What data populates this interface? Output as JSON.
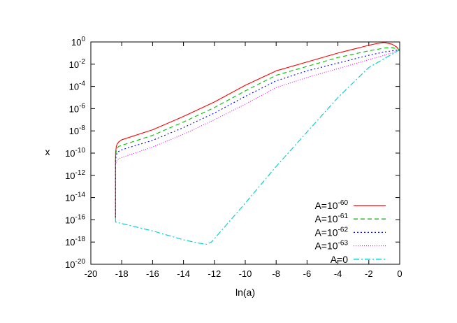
{
  "chart_data": {
    "type": "line",
    "xlabel": "ln(a)",
    "ylabel": "x",
    "xlim": [
      -20,
      0
    ],
    "ylim_log10": [
      -20,
      0
    ],
    "y_scale": "log",
    "legend_placement": "bottom-right",
    "xticks": [
      "-20",
      "-18",
      "-16",
      "-14",
      "-12",
      "-10",
      "-8",
      "-6",
      "-4",
      "-2",
      "0"
    ],
    "yticks": [
      {
        "base": "10",
        "exp": "0"
      },
      {
        "base": "10",
        "exp": "-2"
      },
      {
        "base": "10",
        "exp": "-4"
      },
      {
        "base": "10",
        "exp": "-6"
      },
      {
        "base": "10",
        "exp": "-8"
      },
      {
        "base": "10",
        "exp": "-10"
      },
      {
        "base": "10",
        "exp": "-12"
      },
      {
        "base": "10",
        "exp": "-14"
      },
      {
        "base": "10",
        "exp": "-16"
      },
      {
        "base": "10",
        "exp": "-18"
      },
      {
        "base": "10",
        "exp": "-20"
      }
    ],
    "series": [
      {
        "name": "A=10^-60",
        "legend_base": "A=10",
        "legend_exp": "-60",
        "color": "#ff0000",
        "dash": "",
        "x": [
          -18.4,
          -18.4,
          -18.35,
          -18.3,
          -18.2,
          -18.0,
          -16,
          -14,
          -12,
          -10,
          -8,
          -6,
          -4,
          -2,
          -1.5,
          -1.0,
          -0.5,
          -0.2,
          0
        ],
        "log10_y": [
          -15.8,
          -10.0,
          -9.4,
          -9.2,
          -9.0,
          -8.8,
          -7.9,
          -6.7,
          -5.4,
          -3.9,
          -2.6,
          -1.8,
          -1.0,
          -0.3,
          -0.15,
          -0.05,
          -0.2,
          -0.45,
          -0.8
        ]
      },
      {
        "name": "A=10^-61",
        "legend_base": "A=10",
        "legend_exp": "-61",
        "color": "#00c000",
        "dash": "6,4",
        "x": [
          -18.4,
          -18.4,
          -18.35,
          -18.3,
          -18.2,
          -18.0,
          -16,
          -14,
          -12,
          -10,
          -8,
          -6,
          -4,
          -2,
          -1.0,
          -0.5,
          0
        ],
        "log10_y": [
          -15.8,
          -10.2,
          -9.8,
          -9.6,
          -9.4,
          -9.3,
          -8.4,
          -7.2,
          -5.9,
          -4.4,
          -3.0,
          -2.2,
          -1.4,
          -0.8,
          -0.55,
          -0.5,
          -0.7
        ]
      },
      {
        "name": "A=10^-62",
        "legend_base": "A=10",
        "legend_exp": "-62",
        "color": "#0000ff",
        "dash": "2,3",
        "x": [
          -18.4,
          -18.4,
          -18.35,
          -18.3,
          -18.2,
          -18.0,
          -16,
          -14,
          -12,
          -10,
          -8,
          -6,
          -4,
          -2,
          -1.0,
          0
        ],
        "log10_y": [
          -15.8,
          -10.6,
          -10.2,
          -10.0,
          -9.85,
          -9.7,
          -8.85,
          -7.7,
          -6.4,
          -4.9,
          -3.5,
          -2.6,
          -1.9,
          -1.2,
          -0.9,
          -0.7
        ]
      },
      {
        "name": "A=10^-63",
        "legend_base": "A=10",
        "legend_exp": "-63",
        "color": "#ff00ff",
        "dash": "1,2",
        "x": [
          -18.4,
          -18.4,
          -18.35,
          -18.3,
          -18.2,
          -18.0,
          -16,
          -14,
          -12,
          -10,
          -8,
          -6,
          -4,
          -2,
          -1.0,
          0
        ],
        "log10_y": [
          -15.8,
          -11.1,
          -10.8,
          -10.65,
          -10.5,
          -10.4,
          -9.45,
          -8.3,
          -7.0,
          -5.6,
          -4.1,
          -3.2,
          -2.4,
          -1.6,
          -1.2,
          -0.75
        ]
      },
      {
        "name": "A=0",
        "legend_base": "A=0",
        "legend_exp": "",
        "color": "#00cccc",
        "dash": "8,3,2,3",
        "x": [
          -18.4,
          -18.4,
          -16,
          -14,
          -13.0,
          -12.5,
          -12.2,
          -12.0,
          -10,
          -8,
          -6,
          -4,
          -2,
          0
        ],
        "log10_y": [
          -15.8,
          -16.2,
          -17.0,
          -17.8,
          -18.1,
          -18.2,
          -18.0,
          -17.7,
          -14.5,
          -11.2,
          -8.1,
          -5.0,
          -2.3,
          -0.7
        ]
      }
    ]
  }
}
